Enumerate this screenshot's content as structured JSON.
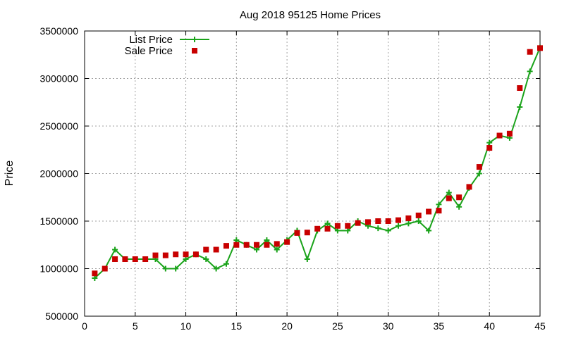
{
  "chart_data": {
    "type": "line",
    "title": "Aug 2018 95125 Home Prices",
    "xlabel": "",
    "ylabel": "Price",
    "xlim": [
      0,
      45
    ],
    "ylim": [
      500000,
      3500000
    ],
    "xticks": [
      0,
      5,
      10,
      15,
      20,
      25,
      30,
      35,
      40,
      45
    ],
    "yticks": [
      500000,
      1000000,
      1500000,
      2000000,
      2500000,
      3000000,
      3500000
    ],
    "grid": true,
    "legend_position": "top-left",
    "series": [
      {
        "name": "List Price",
        "style": "line-plus",
        "color": "#1aa31a",
        "x": [
          1,
          2,
          3,
          4,
          5,
          6,
          7,
          8,
          9,
          10,
          11,
          12,
          13,
          14,
          15,
          16,
          17,
          18,
          19,
          20,
          21,
          22,
          23,
          24,
          25,
          26,
          27,
          28,
          29,
          30,
          31,
          32,
          33,
          34,
          35,
          36,
          37,
          38,
          39,
          40,
          41,
          42,
          43,
          44,
          45
        ],
        "y": [
          900000,
          1000000,
          1200000,
          1100000,
          1100000,
          1100000,
          1100000,
          1000000,
          1000000,
          1100000,
          1150000,
          1100000,
          1000000,
          1050000,
          1300000,
          1250000,
          1200000,
          1300000,
          1200000,
          1300000,
          1400000,
          1100000,
          1400000,
          1475000,
          1400000,
          1400000,
          1500000,
          1450000,
          1425000,
          1400000,
          1450000,
          1475000,
          1500000,
          1400000,
          1675000,
          1800000,
          1650000,
          1850000,
          2000000,
          2325000,
          2400000,
          2375000,
          2700000,
          3075000,
          3325000
        ]
      },
      {
        "name": "Sale Price",
        "style": "square-points",
        "color": "#c80000",
        "x": [
          1,
          2,
          3,
          4,
          5,
          6,
          7,
          8,
          9,
          10,
          11,
          12,
          13,
          14,
          15,
          16,
          17,
          18,
          19,
          20,
          21,
          22,
          23,
          24,
          25,
          26,
          27,
          28,
          29,
          30,
          31,
          32,
          33,
          34,
          35,
          36,
          37,
          38,
          39,
          40,
          41,
          42,
          43,
          44,
          45
        ],
        "y": [
          950000,
          1000000,
          1100000,
          1100000,
          1100000,
          1100000,
          1140000,
          1140000,
          1150000,
          1150000,
          1150000,
          1200000,
          1200000,
          1240000,
          1250000,
          1250000,
          1250000,
          1250000,
          1260000,
          1280000,
          1375000,
          1380000,
          1420000,
          1420000,
          1450000,
          1450000,
          1480000,
          1490000,
          1500000,
          1500000,
          1510000,
          1530000,
          1560000,
          1600000,
          1610000,
          1740000,
          1750000,
          1860000,
          2070000,
          2270000,
          2400000,
          2420000,
          2900000,
          3280000,
          3320000
        ]
      }
    ]
  }
}
